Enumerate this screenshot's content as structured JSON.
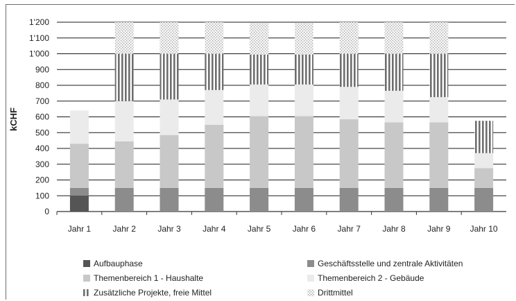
{
  "chart_data": {
    "type": "bar",
    "stacked": true,
    "ylabel": "kCHF",
    "ylim": [
      0,
      1200
    ],
    "yticks": [
      "0",
      "100",
      "200",
      "300",
      "400",
      "500",
      "600",
      "700",
      "800",
      "900",
      "1'000",
      "1'100",
      "1'200"
    ],
    "grid": true,
    "legend_position": "bottom",
    "categories": [
      "Jahr 1",
      "Jahr 2",
      "Jahr 3",
      "Jahr 4",
      "Jahr 5",
      "Jahr 6",
      "Jahr 7",
      "Jahr 8",
      "Jahr 9",
      "Jahr 10"
    ],
    "series": [
      {
        "name": "Aufbauphase",
        "color": "#555555",
        "pattern": "solid",
        "values": [
          100,
          0,
          0,
          0,
          0,
          0,
          0,
          0,
          0,
          0
        ]
      },
      {
        "name": "Geschäftsstelle und zentrale Aktivitäten",
        "color": "#8c8c8c",
        "pattern": "solid",
        "values": [
          50,
          150,
          150,
          150,
          150,
          150,
          150,
          150,
          150,
          150
        ]
      },
      {
        "name": "Themenbereich 1 - Haushalte",
        "color": "#c8c8c8",
        "pattern": "solid",
        "values": [
          280,
          295,
          335,
          400,
          455,
          455,
          435,
          415,
          415,
          125
        ]
      },
      {
        "name": "Themenbereich 2 - Gebäude",
        "color": "#ebebeb",
        "pattern": "solid",
        "values": [
          210,
          255,
          225,
          220,
          200,
          200,
          205,
          200,
          160,
          95
        ]
      },
      {
        "name": "Zusätzliche Projekte, freie Mittel",
        "color": "#7a7a7a",
        "pattern": "vstripes",
        "values": [
          0,
          300,
          290,
          230,
          190,
          190,
          210,
          235,
          275,
          205
        ]
      },
      {
        "name": "Drittmittel",
        "color": "#9a9a9a",
        "pattern": "dots",
        "values": [
          0,
          200,
          200,
          200,
          200,
          200,
          200,
          200,
          200,
          0
        ]
      }
    ]
  }
}
